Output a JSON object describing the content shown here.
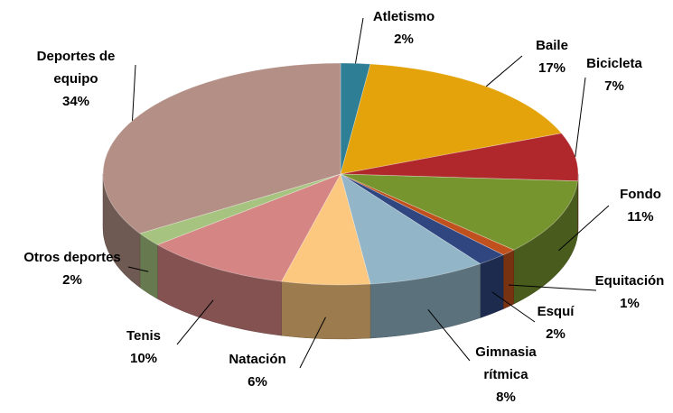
{
  "chart_data": {
    "type": "pie3d",
    "categories": [
      "Atletismo",
      "Baile",
      "Bicicleta",
      "Fondo",
      "Equitación",
      "Esquí",
      "Gimnasia rítmica",
      "Natación",
      "Tenis",
      "Otros deportes",
      "Deportes de equipo"
    ],
    "values": [
      2,
      17,
      7,
      11,
      1,
      2,
      8,
      6,
      10,
      2,
      34
    ],
    "value_labels": [
      "2%",
      "17%",
      "7%",
      "11%",
      "1%",
      "2%",
      "8%",
      "6%",
      "10%",
      "2%",
      "34%"
    ],
    "colors": [
      "#2e7f96",
      "#e4a30b",
      "#b0282b",
      "#77952e",
      "#c0501d",
      "#2f4680",
      "#92b6c8",
      "#fcc77e",
      "#d68585",
      "#a6c47f",
      "#b38f86"
    ]
  }
}
